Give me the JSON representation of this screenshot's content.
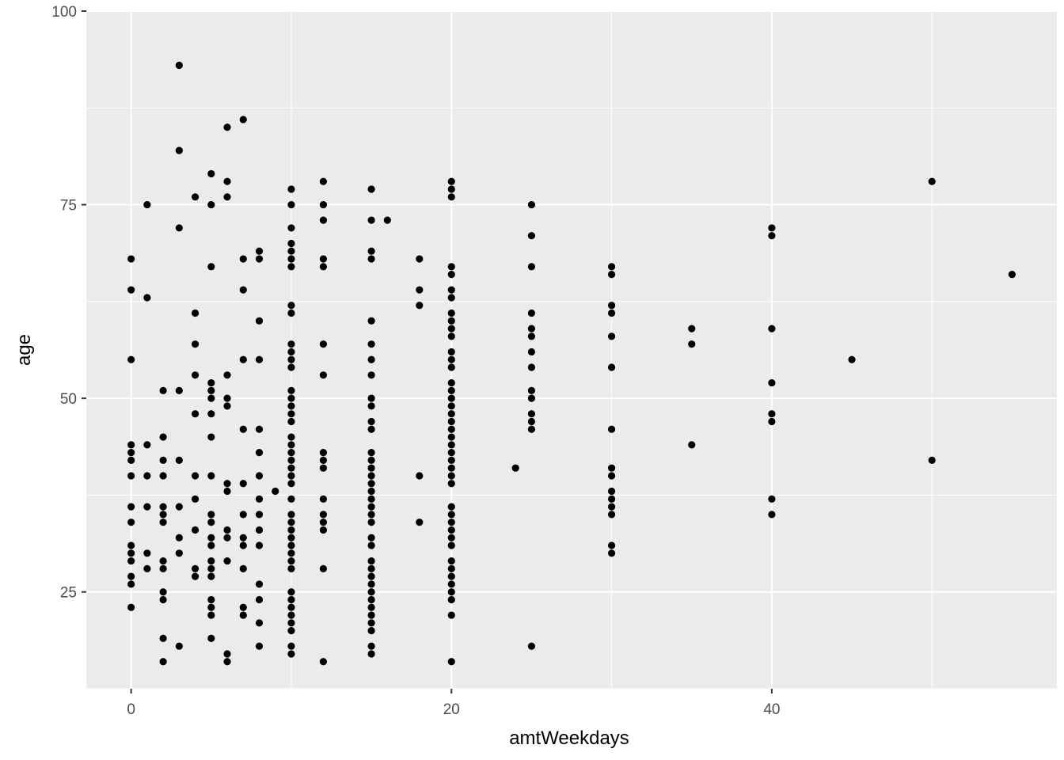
{
  "chart_data": {
    "type": "scatter",
    "title": "",
    "xlabel": "amtWeekdays",
    "ylabel": "age",
    "xlim": [
      -2.8,
      57.8
    ],
    "ylim": [
      12.5,
      100
    ],
    "x_ticks": [
      0,
      20,
      40
    ],
    "x_tick_labels": [
      "0",
      "20",
      "40"
    ],
    "y_ticks": [
      25,
      50,
      75,
      100
    ],
    "y_tick_labels": [
      "25",
      "50",
      "75",
      "100"
    ],
    "grid": true,
    "legend": "none",
    "colors": {
      "panel": "#ebebeb",
      "grid": "#ffffff",
      "point": "#000000",
      "tick_text": "#4d4d4d"
    },
    "points": [
      [
        0,
        68
      ],
      [
        0,
        64
      ],
      [
        0,
        55
      ],
      [
        0,
        44
      ],
      [
        0,
        43
      ],
      [
        0,
        42
      ],
      [
        0,
        40
      ],
      [
        0,
        36
      ],
      [
        0,
        34
      ],
      [
        0,
        31
      ],
      [
        0,
        30
      ],
      [
        0,
        29
      ],
      [
        0,
        27
      ],
      [
        0,
        26
      ],
      [
        0,
        23
      ],
      [
        1,
        75
      ],
      [
        1,
        63
      ],
      [
        1,
        44
      ],
      [
        1,
        40
      ],
      [
        1,
        36
      ],
      [
        1,
        30
      ],
      [
        1,
        28
      ],
      [
        2,
        51
      ],
      [
        2,
        45
      ],
      [
        2,
        42
      ],
      [
        2,
        40
      ],
      [
        2,
        36
      ],
      [
        2,
        35
      ],
      [
        2,
        34
      ],
      [
        2,
        29
      ],
      [
        2,
        28
      ],
      [
        2,
        25
      ],
      [
        2,
        24
      ],
      [
        2,
        19
      ],
      [
        2,
        16
      ],
      [
        3,
        93
      ],
      [
        3,
        82
      ],
      [
        3,
        72
      ],
      [
        3,
        51
      ],
      [
        3,
        42
      ],
      [
        3,
        36
      ],
      [
        3,
        32
      ],
      [
        3,
        30
      ],
      [
        3,
        18
      ],
      [
        4,
        76
      ],
      [
        4,
        61
      ],
      [
        4,
        57
      ],
      [
        4,
        53
      ],
      [
        4,
        48
      ],
      [
        4,
        40
      ],
      [
        4,
        37
      ],
      [
        4,
        33
      ],
      [
        4,
        28
      ],
      [
        4,
        27
      ],
      [
        5,
        79
      ],
      [
        5,
        75
      ],
      [
        5,
        67
      ],
      [
        5,
        52
      ],
      [
        5,
        51
      ],
      [
        5,
        50
      ],
      [
        5,
        48
      ],
      [
        5,
        45
      ],
      [
        5,
        40
      ],
      [
        5,
        35
      ],
      [
        5,
        34
      ],
      [
        5,
        32
      ],
      [
        5,
        31
      ],
      [
        5,
        29
      ],
      [
        5,
        28
      ],
      [
        5,
        27
      ],
      [
        5,
        24
      ],
      [
        5,
        23
      ],
      [
        5,
        22
      ],
      [
        5,
        19
      ],
      [
        6,
        85
      ],
      [
        6,
        78
      ],
      [
        6,
        76
      ],
      [
        6,
        53
      ],
      [
        6,
        50
      ],
      [
        6,
        49
      ],
      [
        6,
        39
      ],
      [
        6,
        38
      ],
      [
        6,
        33
      ],
      [
        6,
        32
      ],
      [
        6,
        29
      ],
      [
        6,
        17
      ],
      [
        6,
        16
      ],
      [
        7,
        86
      ],
      [
        7,
        68
      ],
      [
        7,
        64
      ],
      [
        7,
        55
      ],
      [
        7,
        46
      ],
      [
        7,
        39
      ],
      [
        7,
        35
      ],
      [
        7,
        32
      ],
      [
        7,
        31
      ],
      [
        7,
        28
      ],
      [
        7,
        23
      ],
      [
        7,
        22
      ],
      [
        8,
        69
      ],
      [
        8,
        68
      ],
      [
        8,
        60
      ],
      [
        8,
        55
      ],
      [
        8,
        46
      ],
      [
        8,
        43
      ],
      [
        8,
        40
      ],
      [
        8,
        37
      ],
      [
        8,
        35
      ],
      [
        8,
        33
      ],
      [
        8,
        31
      ],
      [
        8,
        26
      ],
      [
        8,
        24
      ],
      [
        8,
        21
      ],
      [
        8,
        18
      ],
      [
        9,
        38
      ],
      [
        10,
        77
      ],
      [
        10,
        75
      ],
      [
        10,
        72
      ],
      [
        10,
        70
      ],
      [
        10,
        69
      ],
      [
        10,
        68
      ],
      [
        10,
        67
      ],
      [
        10,
        62
      ],
      [
        10,
        61
      ],
      [
        10,
        57
      ],
      [
        10,
        56
      ],
      [
        10,
        55
      ],
      [
        10,
        54
      ],
      [
        10,
        51
      ],
      [
        10,
        50
      ],
      [
        10,
        49
      ],
      [
        10,
        48
      ],
      [
        10,
        47
      ],
      [
        10,
        45
      ],
      [
        10,
        44
      ],
      [
        10,
        43
      ],
      [
        10,
        42
      ],
      [
        10,
        41
      ],
      [
        10,
        40
      ],
      [
        10,
        39
      ],
      [
        10,
        37
      ],
      [
        10,
        35
      ],
      [
        10,
        34
      ],
      [
        10,
        33
      ],
      [
        10,
        32
      ],
      [
        10,
        31
      ],
      [
        10,
        30
      ],
      [
        10,
        29
      ],
      [
        10,
        28
      ],
      [
        10,
        25
      ],
      [
        10,
        24
      ],
      [
        10,
        23
      ],
      [
        10,
        22
      ],
      [
        10,
        21
      ],
      [
        10,
        20
      ],
      [
        10,
        18
      ],
      [
        10,
        17
      ],
      [
        12,
        78
      ],
      [
        12,
        75
      ],
      [
        12,
        73
      ],
      [
        12,
        68
      ],
      [
        12,
        67
      ],
      [
        12,
        57
      ],
      [
        12,
        53
      ],
      [
        12,
        43
      ],
      [
        12,
        42
      ],
      [
        12,
        41
      ],
      [
        12,
        37
      ],
      [
        12,
        35
      ],
      [
        12,
        34
      ],
      [
        12,
        33
      ],
      [
        12,
        28
      ],
      [
        12,
        16
      ],
      [
        15,
        77
      ],
      [
        15,
        73
      ],
      [
        15,
        69
      ],
      [
        15,
        68
      ],
      [
        15,
        60
      ],
      [
        15,
        57
      ],
      [
        15,
        55
      ],
      [
        15,
        53
      ],
      [
        15,
        50
      ],
      [
        15,
        49
      ],
      [
        15,
        47
      ],
      [
        15,
        46
      ],
      [
        15,
        43
      ],
      [
        15,
        42
      ],
      [
        15,
        41
      ],
      [
        15,
        40
      ],
      [
        15,
        39
      ],
      [
        15,
        38
      ],
      [
        15,
        37
      ],
      [
        15,
        36
      ],
      [
        15,
        35
      ],
      [
        15,
        34
      ],
      [
        15,
        32
      ],
      [
        15,
        31
      ],
      [
        15,
        29
      ],
      [
        15,
        28
      ],
      [
        15,
        27
      ],
      [
        15,
        26
      ],
      [
        15,
        25
      ],
      [
        15,
        24
      ],
      [
        15,
        23
      ],
      [
        15,
        22
      ],
      [
        15,
        21
      ],
      [
        15,
        20
      ],
      [
        15,
        18
      ],
      [
        15,
        17
      ],
      [
        16,
        73
      ],
      [
        18,
        68
      ],
      [
        18,
        64
      ],
      [
        18,
        62
      ],
      [
        18,
        40
      ],
      [
        18,
        34
      ],
      [
        20,
        78
      ],
      [
        20,
        77
      ],
      [
        20,
        76
      ],
      [
        20,
        67
      ],
      [
        20,
        66
      ],
      [
        20,
        64
      ],
      [
        20,
        63
      ],
      [
        20,
        61
      ],
      [
        20,
        60
      ],
      [
        20,
        59
      ],
      [
        20,
        58
      ],
      [
        20,
        56
      ],
      [
        20,
        55
      ],
      [
        20,
        54
      ],
      [
        20,
        52
      ],
      [
        20,
        51
      ],
      [
        20,
        50
      ],
      [
        20,
        49
      ],
      [
        20,
        48
      ],
      [
        20,
        47
      ],
      [
        20,
        46
      ],
      [
        20,
        45
      ],
      [
        20,
        44
      ],
      [
        20,
        43
      ],
      [
        20,
        42
      ],
      [
        20,
        41
      ],
      [
        20,
        40
      ],
      [
        20,
        39
      ],
      [
        20,
        36
      ],
      [
        20,
        35
      ],
      [
        20,
        34
      ],
      [
        20,
        33
      ],
      [
        20,
        32
      ],
      [
        20,
        31
      ],
      [
        20,
        29
      ],
      [
        20,
        28
      ],
      [
        20,
        27
      ],
      [
        20,
        26
      ],
      [
        20,
        25
      ],
      [
        20,
        24
      ],
      [
        20,
        22
      ],
      [
        20,
        16
      ],
      [
        24,
        41
      ],
      [
        25,
        75
      ],
      [
        25,
        71
      ],
      [
        25,
        67
      ],
      [
        25,
        61
      ],
      [
        25,
        59
      ],
      [
        25,
        58
      ],
      [
        25,
        56
      ],
      [
        25,
        54
      ],
      [
        25,
        51
      ],
      [
        25,
        50
      ],
      [
        25,
        48
      ],
      [
        25,
        47
      ],
      [
        25,
        46
      ],
      [
        25,
        18
      ],
      [
        30,
        67
      ],
      [
        30,
        66
      ],
      [
        30,
        62
      ],
      [
        30,
        61
      ],
      [
        30,
        58
      ],
      [
        30,
        54
      ],
      [
        30,
        46
      ],
      [
        30,
        41
      ],
      [
        30,
        40
      ],
      [
        30,
        38
      ],
      [
        30,
        37
      ],
      [
        30,
        36
      ],
      [
        30,
        35
      ],
      [
        30,
        31
      ],
      [
        30,
        30
      ],
      [
        35,
        59
      ],
      [
        35,
        57
      ],
      [
        35,
        44
      ],
      [
        40,
        72
      ],
      [
        40,
        71
      ],
      [
        40,
        59
      ],
      [
        40,
        52
      ],
      [
        40,
        48
      ],
      [
        40,
        47
      ],
      [
        40,
        37
      ],
      [
        40,
        35
      ],
      [
        45,
        55
      ],
      [
        50,
        78
      ],
      [
        50,
        42
      ],
      [
        55,
        66
      ]
    ]
  }
}
